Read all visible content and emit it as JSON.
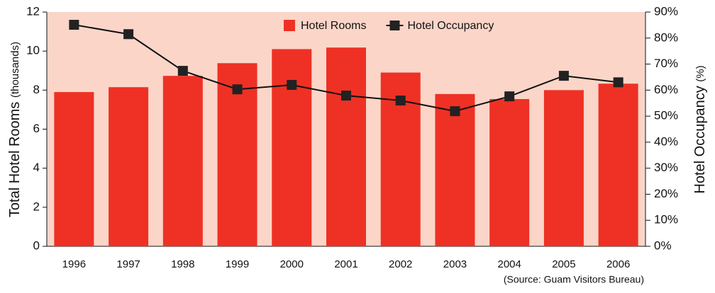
{
  "chart_data": {
    "type": "bar_line",
    "categories": [
      "1996",
      "1997",
      "1998",
      "1999",
      "2000",
      "2001",
      "2002",
      "2003",
      "2004",
      "2005",
      "2006"
    ],
    "series": [
      {
        "name": "Hotel Rooms",
        "type": "bar",
        "color": "#ee3124",
        "axis": "y",
        "values": [
          7.9,
          8.15,
          8.73,
          9.38,
          10.1,
          10.18,
          8.9,
          7.8,
          7.54,
          8.0,
          8.33
        ]
      },
      {
        "name": "Hotel Occupancy",
        "type": "line",
        "color": "#111111",
        "axis": "y2",
        "values": [
          85.1,
          81.5,
          67.4,
          60.3,
          62.0,
          57.9,
          56.0,
          51.9,
          57.6,
          65.5,
          63.0
        ]
      }
    ],
    "y_label": "Total Hotel Rooms",
    "y_label_unit": "(thousands)",
    "y2_label": "Hotel Occupancy",
    "y2_label_unit": "(%)",
    "source": "(Source: Guam Visitors Bureau)",
    "ylim": [
      0,
      12
    ],
    "yticks": [
      0,
      2,
      4,
      6,
      8,
      10,
      12
    ],
    "y2lim": [
      0,
      90
    ],
    "y2ticks": [
      {
        "value": 0,
        "label": "0%"
      },
      {
        "value": 10,
        "label": "10%"
      },
      {
        "value": 20,
        "label": "20%"
      },
      {
        "value": 30,
        "label": "30%"
      },
      {
        "value": 40,
        "label": "40%"
      },
      {
        "value": 50,
        "label": "50%"
      },
      {
        "value": 60,
        "label": "60%"
      },
      {
        "value": 70,
        "label": "70%"
      },
      {
        "value": 80,
        "label": "80%"
      },
      {
        "value": 90,
        "label": "90%"
      }
    ],
    "plot_background": "#fbd5c8",
    "legend": "top"
  }
}
